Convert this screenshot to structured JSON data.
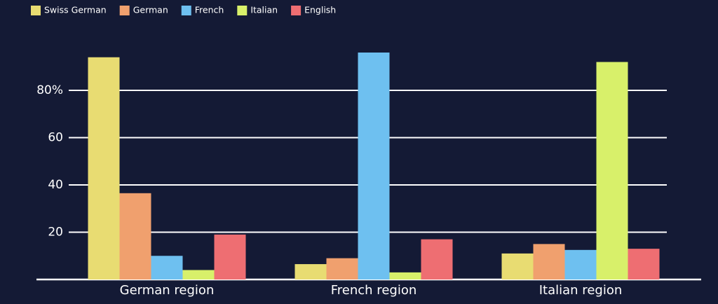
{
  "chart_data": {
    "type": "bar",
    "categories": [
      "German region",
      "French region",
      "Italian region"
    ],
    "series": [
      {
        "name": "Swiss German",
        "color": "#e8dc72",
        "values": [
          94,
          6.5,
          11
        ]
      },
      {
        "name": "German",
        "color": "#f0a06e",
        "values": [
          36.5,
          9,
          15
        ]
      },
      {
        "name": "French",
        "color": "#6ec0f0",
        "values": [
          10,
          96,
          12.5
        ]
      },
      {
        "name": "Italian",
        "color": "#d8f06a",
        "values": [
          4,
          3,
          92
        ]
      },
      {
        "name": "English",
        "color": "#ee6e72",
        "values": [
          19,
          17,
          13
        ]
      }
    ],
    "ylim": [
      0,
      100
    ],
    "yticks": [
      20,
      40,
      60,
      {
        "value": 80,
        "label": "80%"
      }
    ],
    "grid": true,
    "legend": "top-left"
  }
}
